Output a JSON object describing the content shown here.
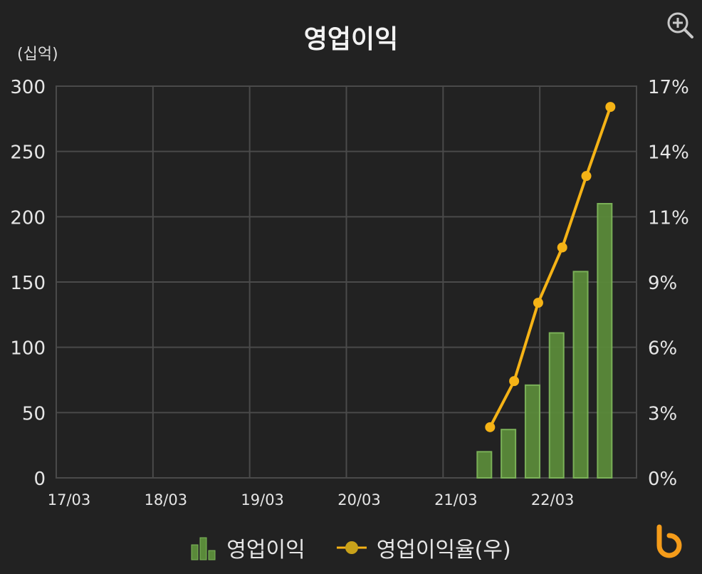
{
  "title": "영업이익",
  "unit_label": "(십억)",
  "legend": {
    "bar_label": "영업이익",
    "line_label": "영업이익율(우)"
  },
  "icons": {
    "zoom": "zoom-in-icon",
    "logo": "brand-logo-icon"
  },
  "colors": {
    "background": "#222222",
    "bar_fill": "#5a8a3a",
    "bar_stroke": "#7fb85a",
    "line": "#f5b316",
    "grid": "#4a4a4a"
  },
  "chart_data": {
    "type": "bar",
    "title": "영업이익",
    "x_ticks": [
      "17/03",
      "18/03",
      "19/03",
      "20/03",
      "21/03",
      "22/03"
    ],
    "y_left": {
      "label": "(십억)",
      "range": [
        0,
        300
      ],
      "ticks": [
        "300",
        "250",
        "200",
        "150",
        "100",
        "50",
        "0"
      ]
    },
    "y_right": {
      "range": [
        0,
        17
      ],
      "ticks": [
        "17%",
        "14%",
        "11%",
        "9%",
        "6%",
        "3%",
        "0%"
      ]
    },
    "grid": true,
    "legend_position": "bottom",
    "series": [
      {
        "name": "영업이익",
        "type": "bar",
        "axis": "left",
        "x": [
          "21/06",
          "21/09",
          "21/12",
          "22/03",
          "22/06",
          "22/09"
        ],
        "values": [
          20,
          37,
          71,
          111,
          158,
          210
        ]
      },
      {
        "name": "영업이익율(우)",
        "type": "line",
        "axis": "right",
        "x": [
          "21/06",
          "21/09",
          "21/12",
          "22/03",
          "22/06",
          "22/09"
        ],
        "values": [
          2.2,
          4.2,
          7.6,
          10.0,
          13.1,
          16.1
        ]
      }
    ]
  }
}
